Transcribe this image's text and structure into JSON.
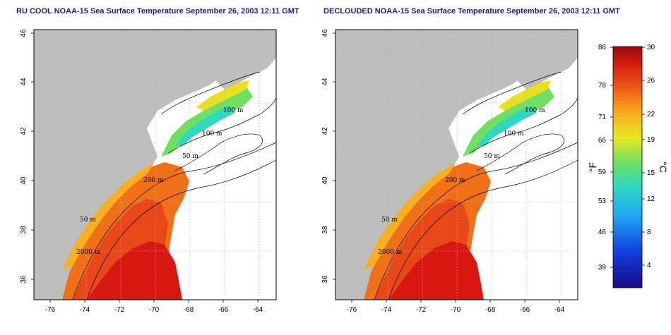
{
  "titles": {
    "left": "RU COOL NOAA-15 Sea Surface Temperature September 26, 2003 12:11 GMT",
    "right": "DECLOUDED NOAA-15 Sea Surface Temperature September 26, 2003 12:11 GMT"
  },
  "axes": {
    "lon_ticks": [
      "-76",
      "-74",
      "-72",
      "-70",
      "-68",
      "-66",
      "-64"
    ],
    "lat_ticks": [
      "36",
      "38",
      "40",
      "42",
      "44",
      "46"
    ]
  },
  "depth_labels": {
    "d100a": "100 m",
    "d100b": "100 m",
    "d50a": "50 m",
    "d200": "200 m",
    "d50b": "50 m",
    "d2000": "2000 m"
  },
  "colorbar": {
    "fahrenheit": [
      "86",
      "78",
      "71",
      "66",
      "59",
      "53",
      "46",
      "39"
    ],
    "celsius": [
      "30",
      "26",
      "22",
      "19",
      "15",
      "12",
      "8",
      "4"
    ],
    "unit_f": "°F",
    "unit_c": "°C"
  },
  "colors": {
    "land": "#bebebe",
    "ocean": "#ffffff",
    "warm": "#cc1010",
    "hot": "#e82a10",
    "orange": "#f07018",
    "lightorange": "#f5a020",
    "yellow": "#e8e020",
    "green": "#40d070",
    "cyan": "#30c8d8",
    "title": "#1a1aa0"
  }
}
